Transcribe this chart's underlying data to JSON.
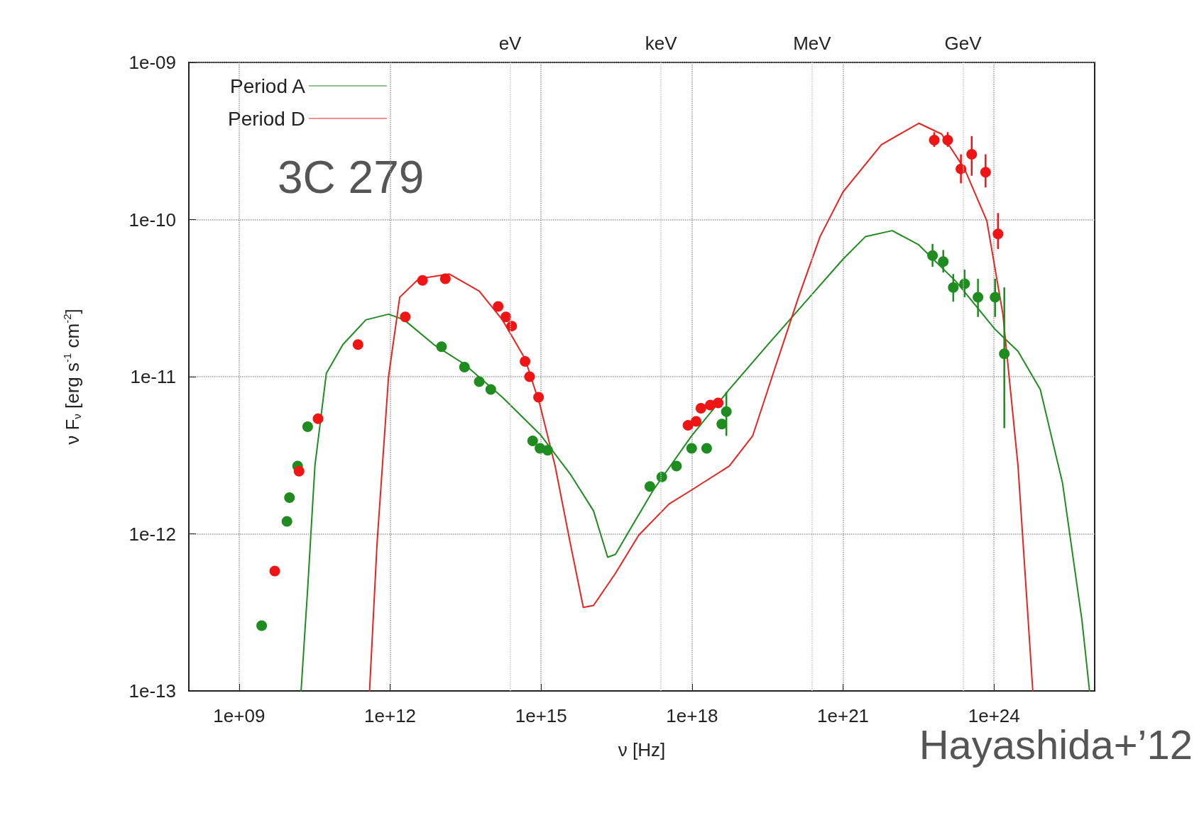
{
  "chart_data": {
    "type": "line",
    "xlabel": "ν [Hz]",
    "ylabel": "ν F$_{ν}$ [erg s$^{-1}$ cm$^{-2}$]",
    "log": "xy",
    "grid": true,
    "legend": "top left",
    "line_style": "solid",
    "xlim": [
      100000000.0,
      1e+26
    ],
    "xticks": [
      {
        "value": 1000000000.0,
        "label": "1e+09"
      },
      {
        "value": 1000000000000.0,
        "label": "1e+12"
      },
      {
        "value": 1000000000000000.0,
        "label": "1e+15"
      },
      {
        "value": 1e+18,
        "label": "1e+18"
      },
      {
        "value": 1e+21,
        "label": "1e+21"
      },
      {
        "value": 1e+24,
        "label": "1e+24"
      }
    ],
    "ref_lines": [
      {
        "axis": "x",
        "value": 242000000000000.0,
        "label": "eV",
        "color": "#c8c8c8",
        "line_style": "dotted"
      },
      {
        "axis": "x",
        "value": 2.42e+17,
        "label": "keV",
        "color": "#c8c8c8",
        "line_style": "dotted"
      },
      {
        "axis": "x",
        "value": 2.42e+20,
        "label": "MeV",
        "color": "#c8c8c8",
        "line_style": "dotted"
      },
      {
        "axis": "x",
        "value": 2.42e+23,
        "label": "GeV",
        "color": "#c8c8c8",
        "line_style": "dotted"
      }
    ],
    "ylim": [
      1e-13,
      1e-09
    ],
    "yticks": [
      {
        "value": 1e-13,
        "label": "1e-13"
      },
      {
        "value": 1e-12,
        "label": "1e-12"
      },
      {
        "value": 1e-11,
        "label": "1e-11"
      },
      {
        "value": 1e-10,
        "label": "1e-10"
      },
      {
        "value": 1e-09,
        "label": "1e-09"
      }
    ],
    "annotations": [
      "3C 279",
      "Hayashida+’12"
    ],
    "series": [
      {
        "name": "Period A",
        "color": "#1e8c1e",
        "x": [
          17000000000.0,
          23000000000.0,
          32000000000.0,
          54000000000.0,
          115000000000.0,
          330000000000.0,
          930000000000.0,
          1900000000000.0,
          7400000000000.0,
          30000000000000.0,
          170000000000000.0,
          950000000000000.0,
          3800000000000000.0,
          1.1e+16,
          2.1e+16,
          3e+16,
          6.2e+16,
          1.7e+17,
          9.8e+17,
          5.5e+18,
          3.2e+19,
          1.8e+20,
          1e+21,
          2.8e+21,
          9.5e+21,
          3.2e+22,
          1.8e+23,
          1.05e+24,
          3e+24,
          8.3e+24,
          2.3e+25,
          5.6e+25,
          7.9e+25
        ],
        "values": [
          1e-13,
          4.5e-13,
          2.7e-12,
          1.05e-11,
          1.6e-11,
          2.3e-11,
          2.5e-11,
          2.3e-11,
          1.6e-11,
          1.2e-11,
          7.4e-12,
          4.3e-12,
          2.4e-12,
          1.4e-12,
          7.1e-13,
          7.4e-13,
          1.1e-12,
          1.9e-12,
          4.2e-12,
          8.3e-12,
          1.6e-11,
          3e-11,
          5.6e-11,
          7.8e-11,
          8.5e-11,
          6.9e-11,
          4e-11,
          2e-11,
          1.45e-11,
          8.3e-12,
          2.1e-12,
          2.8e-13,
          1e-13
        ]
      },
      {
        "name": "Period D",
        "color": "#e8231e",
        "x": [
          390000000000.0,
          550000000000.0,
          930000000000.0,
          1550000000000.0,
          3700000000000.0,
          15000000000000.0,
          59000000000000.0,
          170000000000000.0,
          480000000000000.0,
          950000000000000.0,
          1900000000000000.0,
          3800000000000000.0,
          6900000000000000.0,
          1.1e+16,
          3e+16,
          8.7e+16,
          3.5e+17,
          9.8e+17,
          5.5e+18,
          1.6e+19,
          4.5e+19,
          1.3e+20,
          3.5e+20,
          1e+21,
          5.8e+21,
          3.2e+22,
          9.1e+22,
          2.6e+23,
          7.2e+23,
          1.5e+24,
          3e+24,
          5.9e+24
        ],
        "values": [
          1e-13,
          8.7e-13,
          1e-11,
          3.2e-11,
          4.2e-11,
          4.5e-11,
          3.5e-11,
          2.3e-11,
          1.3e-11,
          6.6e-12,
          2.7e-12,
          8.7e-13,
          3.4e-13,
          3.5e-13,
          5.6e-13,
          9.8e-13,
          1.55e-12,
          1.9e-12,
          2.7e-12,
          4.2e-12,
          1.15e-11,
          3.2e-11,
          7.8e-11,
          1.5e-10,
          3e-10,
          4.1e-10,
          3.5e-10,
          2.1e-10,
          9.8e-11,
          2.5e-11,
          2.7e-12,
          1e-13
        ]
      },
      {
        "type": "scatter",
        "marker": "circle",
        "color": "#1e8c1e",
        "x": [
          2800000000.0,
          8900000000.0,
          10000000000.0,
          14500000000.0,
          23000000000.0,
          10500000000000.0,
          30000000000000.0,
          59000000000000.0,
          100000000000000.0,
          680000000000000.0,
          950000000000000.0,
          1350000000000000.0,
          1.45e+17,
          2.5e+17,
          4.9e+17,
          9.8e+17,
          1.95e+18,
          3.9e+18,
          4.8e+18,
          6e+22,
          9.8e+22,
          1.55e+23,
          2.6e+23,
          4.8e+23,
          1.05e+24,
          1.6e+24
        ],
        "values": [
          2.6e-13,
          1.2e-12,
          1.7e-12,
          2.7e-12,
          4.8e-12,
          1.55e-11,
          1.15e-11,
          9.3e-12,
          8.3e-12,
          3.9e-12,
          3.5e-12,
          3.4e-12,
          2e-12,
          2.3e-12,
          2.7e-12,
          3.5e-12,
          3.5e-12,
          5e-12,
          6e-12,
          5.9e-11,
          5.4e-11,
          3.7e-11,
          3.9e-11,
          3.2e-11,
          3.2e-11,
          1.4e-11
        ],
        "errors": [
          null,
          null,
          null,
          null,
          null,
          null,
          null,
          null,
          null,
          null,
          null,
          null,
          null,
          null,
          null,
          null,
          null,
          null,
          [
            4.2e-12,
            8e-12
          ],
          [
            5e-11,
            7e-11
          ],
          [
            4.6e-11,
            6.4e-11
          ],
          [
            3e-11,
            4.5e-11
          ],
          [
            3.2e-11,
            4.8e-11
          ],
          [
            2.4e-11,
            4.2e-11
          ],
          [
            2.4e-11,
            4.2e-11
          ],
          [
            4.7e-12,
            3.7e-11
          ]
        ]
      },
      {
        "type": "scatter",
        "marker": "circle",
        "color": "#f01414",
        "x": [
          5100000000.0,
          15500000000.0,
          37000000000.0,
          230000000000.0,
          2000000000000.0,
          4400000000000.0,
          12500000000000.0,
          140000000000000.0,
          200000000000000.0,
          260000000000000.0,
          480000000000000.0,
          590000000000000.0,
          890000000000000.0,
          8.3e+17,
          1.2e+18,
          1.5e+18,
          2.3e+18,
          3.3e+18,
          6.5e+22,
          1.2e+23,
          2.2e+23,
          3.6e+23,
          6.8e+23,
          1.2e+24
        ],
        "values": [
          5.8e-13,
          2.5e-12,
          5.4e-12,
          1.6e-11,
          2.4e-11,
          4.1e-11,
          4.2e-11,
          2.8e-11,
          2.4e-11,
          2.1e-11,
          1.25e-11,
          1e-11,
          7.4e-12,
          4.9e-12,
          5.2e-12,
          6.3e-12,
          6.6e-12,
          6.8e-12,
          3.2e-10,
          3.2e-10,
          2.1e-10,
          2.6e-10,
          2e-10,
          8.1e-11
        ],
        "errors": [
          null,
          null,
          null,
          null,
          null,
          null,
          null,
          null,
          null,
          null,
          null,
          null,
          null,
          null,
          null,
          null,
          null,
          null,
          [
            2.9e-10,
            3.6e-10
          ],
          [
            2.9e-10,
            3.6e-10
          ],
          [
            1.7e-10,
            2.6e-10
          ],
          [
            1.9e-10,
            3.4e-10
          ],
          [
            1.6e-10,
            2.6e-10
          ],
          [
            6.5e-11,
            1.1e-10
          ]
        ]
      }
    ]
  }
}
